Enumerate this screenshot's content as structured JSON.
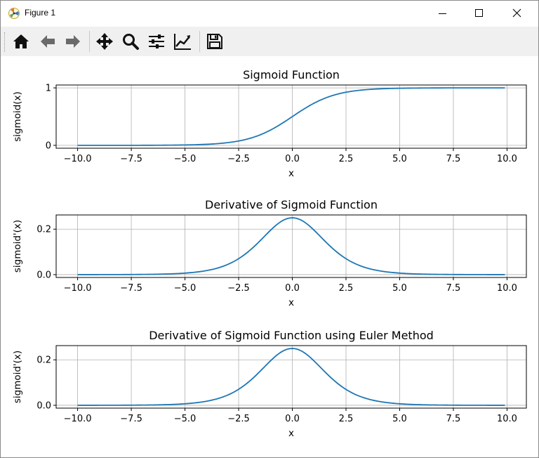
{
  "window": {
    "title": "Figure 1",
    "icon": "matplotlib-icon"
  },
  "toolbar": {
    "buttons": [
      {
        "name": "home-icon"
      },
      {
        "name": "back-arrow-icon"
      },
      {
        "name": "forward-arrow-icon"
      },
      {
        "name": "pan-icon"
      },
      {
        "name": "zoom-icon"
      },
      {
        "name": "configure-subplots-icon"
      },
      {
        "name": "edit-axis-icon"
      },
      {
        "name": "save-icon"
      }
    ]
  },
  "colors": {
    "line": "#1f77b4",
    "grid": "#b0b0b0",
    "toolbar_bg": "#f0f0f0"
  },
  "chart_data": [
    {
      "type": "line",
      "title": "Sigmoid Function",
      "xlabel": "x",
      "ylabel": "sigmoid(x)",
      "xlim": [
        -11.0,
        10.9
      ],
      "ylim": [
        -0.05,
        1.05
      ],
      "xticks": [
        -10.0,
        -7.5,
        -5.0,
        -2.5,
        0.0,
        2.5,
        5.0,
        7.5,
        10.0
      ],
      "xtick_labels": [
        "−10.0",
        "−7.5",
        "−5.0",
        "−2.5",
        "0.0",
        "2.5",
        "5.0",
        "7.5",
        "10.0"
      ],
      "yticks": [
        0,
        1
      ],
      "ytick_labels": [
        "0",
        "1"
      ],
      "grid": true,
      "series": [
        {
          "function": "sigmoid",
          "x_range": [
            -10.0,
            9.9
          ]
        }
      ]
    },
    {
      "type": "line",
      "title": "Derivative of Sigmoid Function",
      "xlabel": "x",
      "ylabel": "sigmoid'(x)",
      "xlim": [
        -11.0,
        10.9
      ],
      "ylim": [
        -0.0125,
        0.2625
      ],
      "xticks": [
        -10.0,
        -7.5,
        -5.0,
        -2.5,
        0.0,
        2.5,
        5.0,
        7.5,
        10.0
      ],
      "xtick_labels": [
        "−10.0",
        "−7.5",
        "−5.0",
        "−2.5",
        "0.0",
        "2.5",
        "5.0",
        "7.5",
        "10.0"
      ],
      "yticks": [
        0.0,
        0.2
      ],
      "ytick_labels": [
        "0.0",
        "0.2"
      ],
      "grid": true,
      "series": [
        {
          "function": "sigmoid_derivative",
          "x_range": [
            -10.0,
            9.9
          ]
        }
      ]
    },
    {
      "type": "line",
      "title": "Derivative of Sigmoid Function using Euler Method",
      "xlabel": "x",
      "ylabel": "sigmoid'(x)",
      "xlim": [
        -11.0,
        10.9
      ],
      "ylim": [
        -0.0125,
        0.2625
      ],
      "xticks": [
        -10.0,
        -7.5,
        -5.0,
        -2.5,
        0.0,
        2.5,
        5.0,
        7.5,
        10.0
      ],
      "xtick_labels": [
        "−10.0",
        "−7.5",
        "−5.0",
        "−2.5",
        "0.0",
        "2.5",
        "5.0",
        "7.5",
        "10.0"
      ],
      "yticks": [
        0.0,
        0.2
      ],
      "ytick_labels": [
        "0.0",
        "0.2"
      ],
      "grid": true,
      "series": [
        {
          "function": "sigmoid_derivative_euler",
          "x_range": [
            -10.0,
            9.9
          ]
        }
      ]
    }
  ]
}
